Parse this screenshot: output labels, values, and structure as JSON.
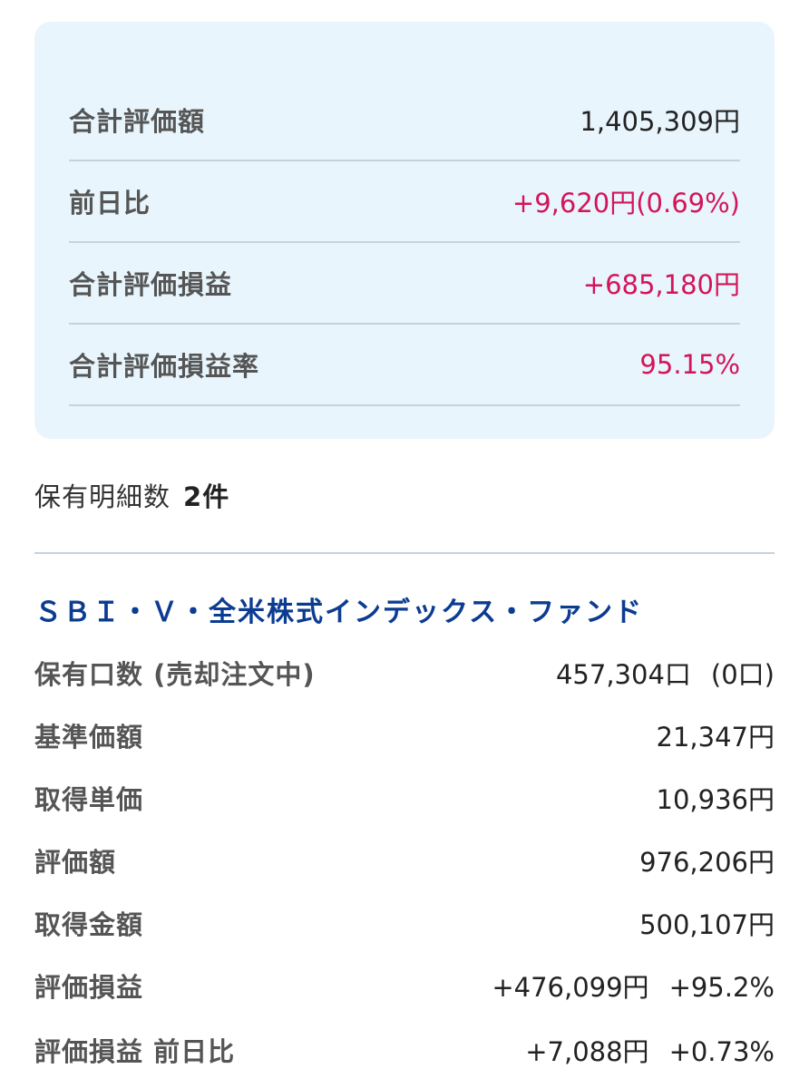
{
  "summary": {
    "rows": [
      {
        "label": "合計評価額",
        "value": "1,405,309円"
      },
      {
        "label": "前日比",
        "value": "+9,620円(0.69%)"
      },
      {
        "label": "合計評価損益",
        "value": "+685,180円"
      },
      {
        "label": "合計評価損益率",
        "value": "95.15%"
      }
    ]
  },
  "holdings_count": {
    "label": "保有明細数",
    "value": "2件"
  },
  "fund": {
    "name": "ＳＢＩ・Ｖ・全米株式インデックス・ファンド",
    "details": [
      {
        "label": "保有口数 (売却注文中)",
        "value": "457,304口",
        "value2": "(0口)"
      },
      {
        "label": "基準価額",
        "value": "21,347円"
      },
      {
        "label": "取得単価",
        "value": "10,936円"
      },
      {
        "label": "評価額",
        "value": "976,206円"
      },
      {
        "label": "取得金額",
        "value": "500,107円"
      },
      {
        "label": "評価損益",
        "value": "+476,099円",
        "value2": "+95.2%"
      },
      {
        "label": "評価損益 前日比",
        "value": "+7,088円",
        "value2": "+0.73%"
      }
    ]
  },
  "colors": {
    "positive": "#d4145a",
    "fund_title": "#0b3c91",
    "card_background": "#e8f5fc"
  }
}
